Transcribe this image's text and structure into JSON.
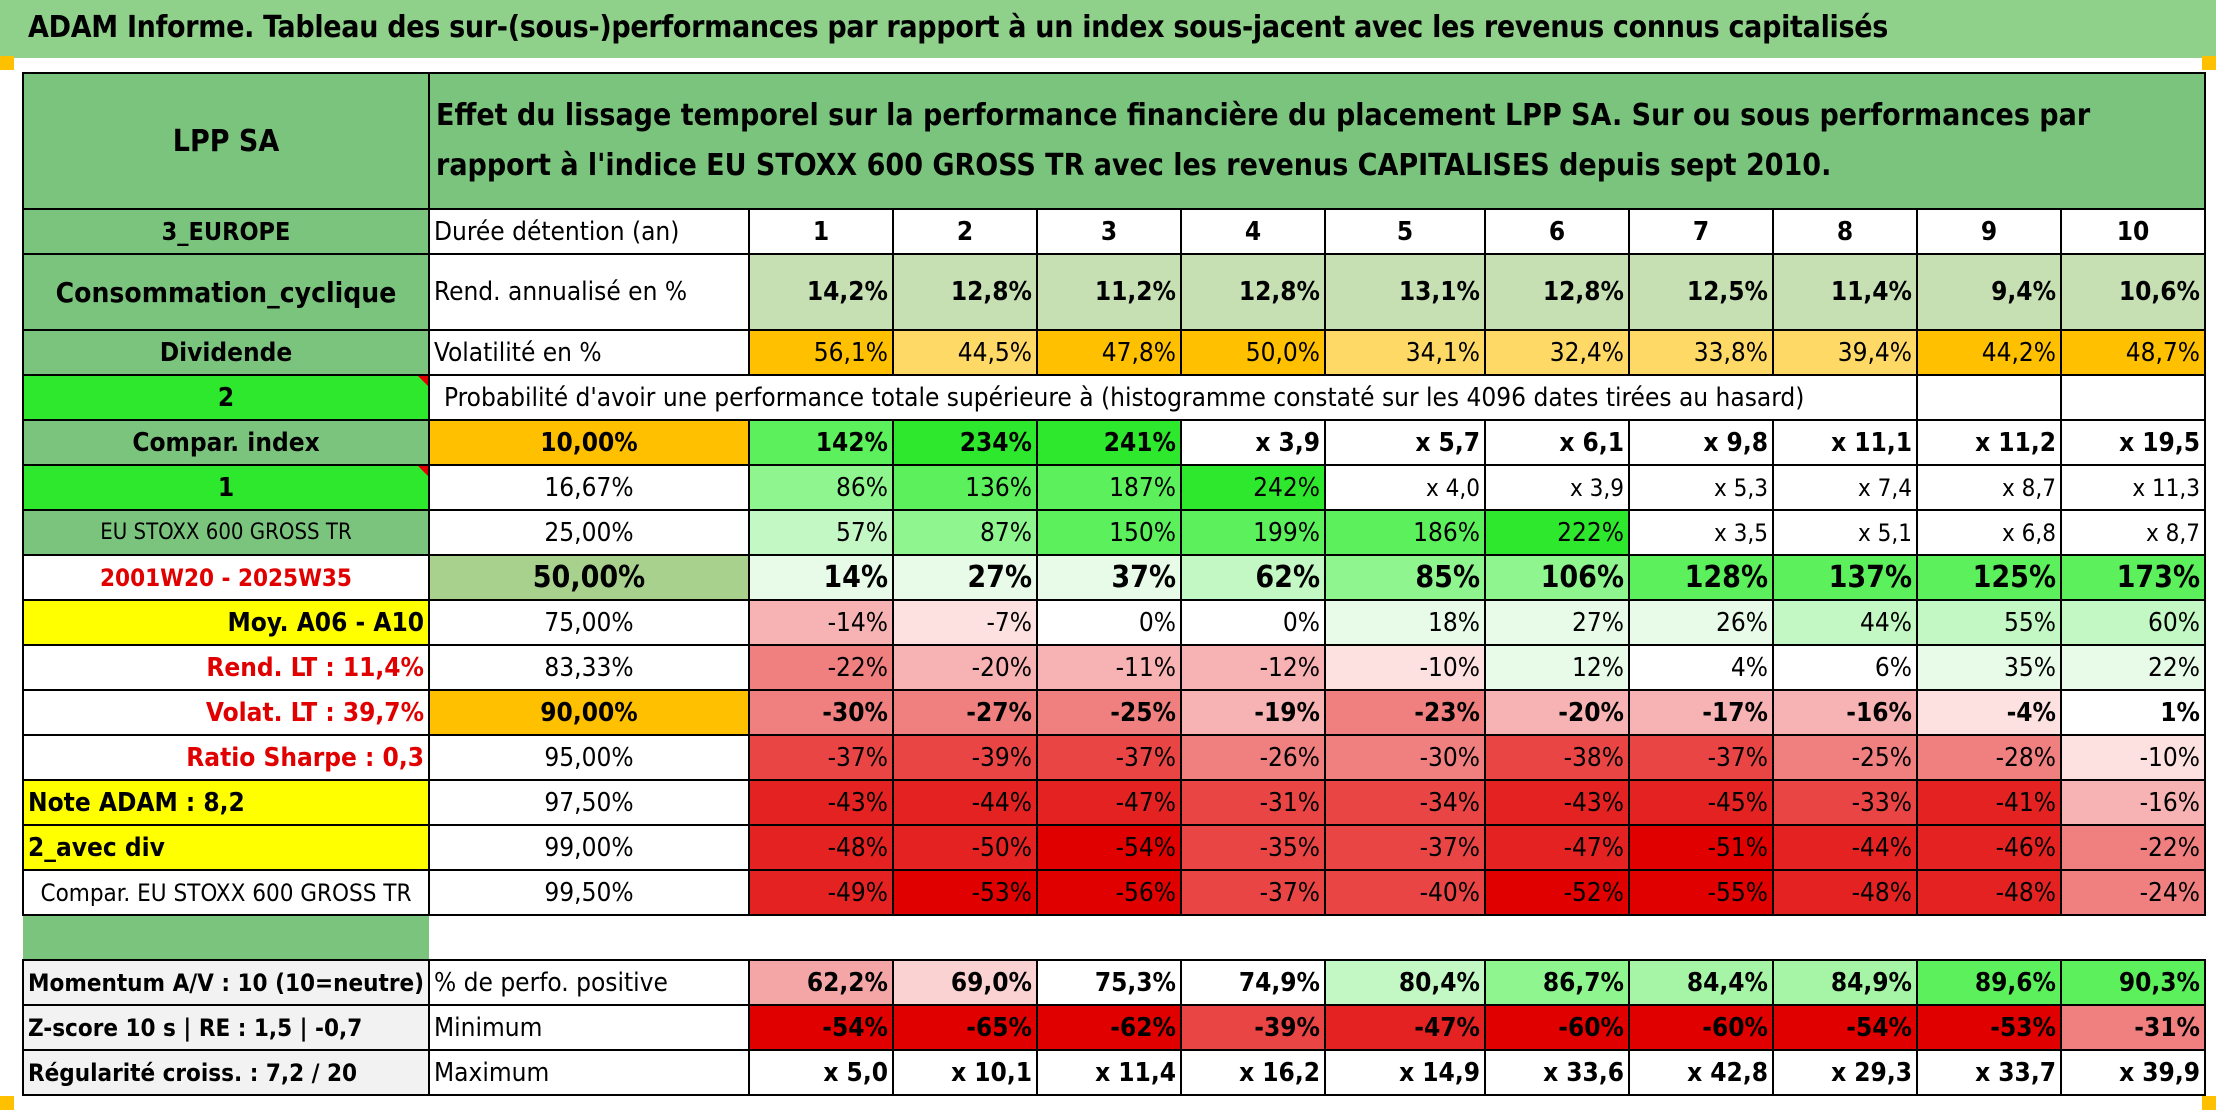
{
  "header": {
    "title": "ADAM Informe. Tableau des sur-(sous-)performances par rapport à un index sous-jacent avec les revenus connus capitalisés"
  },
  "left": {
    "company": "LPP SA",
    "region": "3_EUROPE",
    "sector": "Consommation_cyclique",
    "dividend": "Dividende",
    "val2": "2",
    "compar": "Compar. index",
    "val1": "1",
    "index": "EU STOXX 600 GROSS TR",
    "period": "2001W20 - 2025W35",
    "moy": "Moy. A06 - A10",
    "rend": "Rend. LT :   11,4%",
    "volat": "Volat. LT :   39,7%",
    "sharpe": "Ratio Sharpe :    0,3",
    "note": "Note ADAM : 8,2",
    "avecdiv": "2_avec div",
    "comparEU": "Compar. EU STOXX 600 GROSS TR",
    "momentum": "Momentum A/V : 10 (10=neutre)",
    "zscore": "Z-score 10 s | RE : 1,5 | -0,7",
    "regular": "Régularité croiss. : 7,2 / 20"
  },
  "intro": "Effet du lissage temporel sur la performance financière du placement LPP SA. Sur ou sous performances par rapport à l'indice EU STOXX 600 GROSS TR avec les revenus CAPITALISES depuis sept 2010.",
  "duree_label": "Durée détention (an)",
  "years": [
    "1",
    "2",
    "3",
    "4",
    "5",
    "6",
    "7",
    "8",
    "9",
    "10"
  ],
  "rend_label": "Rend. annualisé en %",
  "rend": [
    "14,2%",
    "12,8%",
    "11,2%",
    "12,8%",
    "13,1%",
    "12,8%",
    "12,5%",
    "11,4%",
    "9,4%",
    "10,6%"
  ],
  "vol_label": "Volatilité en %",
  "vol": [
    "56,1%",
    "44,5%",
    "47,8%",
    "50,0%",
    "34,1%",
    "32,4%",
    "33,8%",
    "39,4%",
    "44,2%",
    "48,7%"
  ],
  "proba_label": "Probabilité d'avoir une performance totale supérieure à (histogramme constaté sur les 4096 dates tirées au hasard)",
  "rows": [
    {
      "p": "10,00%",
      "v": [
        "142%",
        "234%",
        "241%",
        "x 3,9",
        "x 5,7",
        "x 6,1",
        "x 9,8",
        "x 11,1",
        "x 11,2",
        "x 19,5"
      ]
    },
    {
      "p": "16,67%",
      "v": [
        "86%",
        "136%",
        "187%",
        "242%",
        "x 4,0",
        "x 3,9",
        "x 5,3",
        "x 7,4",
        "x 8,7",
        "x 11,3"
      ]
    },
    {
      "p": "25,00%",
      "v": [
        "57%",
        "87%",
        "150%",
        "199%",
        "186%",
        "222%",
        "x 3,5",
        "x 5,1",
        "x 6,8",
        "x 8,7"
      ]
    },
    {
      "p": "50,00%",
      "v": [
        "14%",
        "27%",
        "37%",
        "62%",
        "85%",
        "106%",
        "128%",
        "137%",
        "125%",
        "173%"
      ]
    },
    {
      "p": "75,00%",
      "v": [
        "-14%",
        "-7%",
        "0%",
        "0%",
        "18%",
        "27%",
        "26%",
        "44%",
        "55%",
        "60%"
      ]
    },
    {
      "p": "83,33%",
      "v": [
        "-22%",
        "-20%",
        "-11%",
        "-12%",
        "-10%",
        "12%",
        "4%",
        "6%",
        "35%",
        "22%"
      ]
    },
    {
      "p": "90,00%",
      "v": [
        "-30%",
        "-27%",
        "-25%",
        "-19%",
        "-23%",
        "-20%",
        "-17%",
        "-16%",
        "-4%",
        "1%"
      ]
    },
    {
      "p": "95,00%",
      "v": [
        "-37%",
        "-39%",
        "-37%",
        "-26%",
        "-30%",
        "-38%",
        "-37%",
        "-25%",
        "-28%",
        "-10%"
      ]
    },
    {
      "p": "97,50%",
      "v": [
        "-43%",
        "-44%",
        "-47%",
        "-31%",
        "-34%",
        "-43%",
        "-45%",
        "-33%",
        "-41%",
        "-16%"
      ]
    },
    {
      "p": "99,00%",
      "v": [
        "-48%",
        "-50%",
        "-54%",
        "-35%",
        "-37%",
        "-47%",
        "-51%",
        "-44%",
        "-46%",
        "-22%"
      ]
    },
    {
      "p": "99,50%",
      "v": [
        "-49%",
        "-53%",
        "-56%",
        "-37%",
        "-40%",
        "-52%",
        "-55%",
        "-48%",
        "-48%",
        "-24%"
      ]
    }
  ],
  "pos_label": "% de perfo. positive",
  "pos": [
    "62,2%",
    "69,0%",
    "75,3%",
    "74,9%",
    "80,4%",
    "86,7%",
    "84,4%",
    "84,9%",
    "89,6%",
    "90,3%"
  ],
  "min_label": "Minimum",
  "min": [
    "-54%",
    "-65%",
    "-62%",
    "-39%",
    "-47%",
    "-60%",
    "-60%",
    "-54%",
    "-53%",
    "-31%"
  ],
  "max_label": "Maximum",
  "max": [
    "x 5,0",
    "x 10,1",
    "x 11,4",
    "x 16,2",
    "x 14,9",
    "x 33,6",
    "x 42,8",
    "x 29,3",
    "x 33,7",
    "x 39,9"
  ],
  "colors": {
    "header": "#8fd18a",
    "label_green": "#7bc47e",
    "orange": "#ffc000",
    "yellow": "#ffff00",
    "bright_green": "#2ee82e",
    "red_text": "#e00000"
  }
}
